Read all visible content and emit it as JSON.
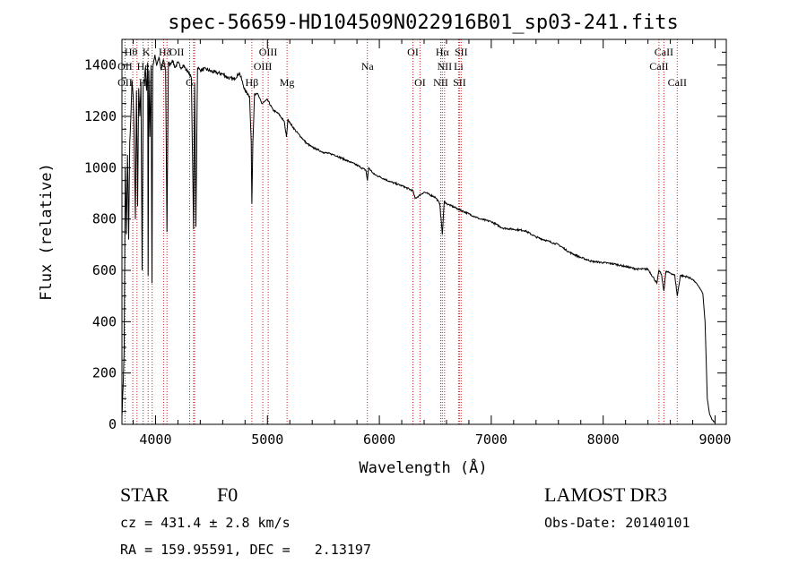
{
  "chart_data": {
    "type": "line",
    "title": "spec-56659-HD104509N022916B01_sp03-241.fits",
    "xlabel": "Wavelength (Å)",
    "ylabel": "Flux (relative)",
    "xlim": [
      3700,
      9100
    ],
    "ylim": [
      0,
      1500
    ],
    "x_ticks": [
      4000,
      5000,
      6000,
      7000,
      8000,
      9000
    ],
    "y_ticks": [
      0,
      200,
      400,
      600,
      800,
      1000,
      1200,
      1400
    ],
    "grid": false,
    "series": [
      {
        "name": "Flux",
        "x": [
          3700,
          3710,
          3720,
          3730,
          3740,
          3750,
          3760,
          3770,
          3780,
          3790,
          3800,
          3810,
          3820,
          3830,
          3840,
          3850,
          3860,
          3870,
          3880,
          3890,
          3900,
          3910,
          3920,
          3930,
          3934,
          3940,
          3950,
          3960,
          3968,
          3975,
          3985,
          3995,
          4010,
          4030,
          4050,
          4070,
          4090,
          4102,
          4115,
          4130,
          4150,
          4175,
          4200,
          4225,
          4250,
          4275,
          4300,
          4320,
          4340,
          4350,
          4361,
          4375,
          4400,
          4450,
          4500,
          4550,
          4600,
          4650,
          4700,
          4750,
          4800,
          4840,
          4855,
          4861,
          4870,
          4885,
          4910,
          4950,
          5000,
          5050,
          5100,
          5150,
          5170,
          5183,
          5200,
          5250,
          5300,
          5350,
          5400,
          5450,
          5500,
          5600,
          5700,
          5800,
          5880,
          5893,
          5905,
          5950,
          6000,
          6100,
          6200,
          6300,
          6320,
          6400,
          6500,
          6540,
          6563,
          6580,
          6600,
          6700,
          6800,
          6900,
          7000,
          7100,
          7200,
          7300,
          7400,
          7500,
          7600,
          7700,
          7800,
          7900,
          8000,
          8100,
          8200,
          8300,
          8400,
          8480,
          8498,
          8520,
          8542,
          8560,
          8600,
          8640,
          8662,
          8690,
          8750,
          8800,
          8850,
          8890,
          8910,
          8930,
          8950,
          8970,
          9000
        ],
        "y": [
          30,
          140,
          300,
          1000,
          740,
          1050,
          720,
          1100,
          1200,
          1340,
          1280,
          1100,
          800,
          1300,
          850,
          1310,
          1200,
          1330,
          600,
          1330,
          1340,
          1390,
          1300,
          1410,
          580,
          1380,
          1120,
          1400,
          550,
          1380,
          1420,
          1440,
          1400,
          1430,
          1380,
          1420,
          1380,
          750,
          1410,
          1400,
          1420,
          1390,
          1410,
          1390,
          1400,
          1380,
          1370,
          1350,
          760,
          1330,
          770,
          1390,
          1380,
          1385,
          1375,
          1370,
          1365,
          1350,
          1345,
          1370,
          1300,
          1280,
          1100,
          860,
          1100,
          1290,
          1290,
          1250,
          1265,
          1225,
          1210,
          1180,
          1120,
          1190,
          1175,
          1145,
          1120,
          1095,
          1080,
          1070,
          1060,
          1050,
          1030,
          1010,
          990,
          950,
          1000,
          975,
          965,
          945,
          930,
          910,
          880,
          905,
          885,
          860,
          740,
          870,
          860,
          840,
          820,
          800,
          790,
          765,
          760,
          755,
          730,
          715,
          700,
          670,
          650,
          635,
          630,
          625,
          615,
          605,
          605,
          550,
          600,
          585,
          520,
          595,
          590,
          580,
          500,
          580,
          575,
          565,
          540,
          510,
          400,
          100,
          40,
          20,
          5
        ]
      }
    ],
    "line_markers": [
      {
        "name": "OII",
        "wavelength": 3727,
        "row": 3,
        "offset": 0
      },
      {
        "name": "Hθ",
        "wavelength": 3797,
        "row": 1,
        "offset": -2
      },
      {
        "name": "OII",
        "wavelength": 3727,
        "row": 2,
        "offset": 0
      },
      {
        "name": "He",
        "wavelength": 3889,
        "row": 2,
        "offset": 0
      },
      {
        "name": "Hε",
        "wavelength": 3970,
        "row": 3,
        "offset": -8
      },
      {
        "name": "K",
        "wavelength": 3934,
        "row": 1,
        "offset": -2
      },
      {
        "name": "Hδ",
        "wavelength": 4102,
        "row": 1,
        "offset": -2
      },
      {
        "name": "S",
        "wavelength": 4072,
        "row": 2,
        "offset": 0
      },
      {
        "name": "OII",
        "wavelength": 4350,
        "row": 1,
        "offset": -20
      },
      {
        "name": "G",
        "wavelength": 4305,
        "row": 3,
        "offset": 0
      },
      {
        "name": "OIII",
        "wavelength": 5007,
        "row": 1,
        "offset": 0
      },
      {
        "name": "OIII",
        "wavelength": 4959,
        "row": 2,
        "offset": 0
      },
      {
        "name": "Hβ",
        "wavelength": 4861,
        "row": 3,
        "offset": 0
      },
      {
        "name": "Mg",
        "wavelength": 5175,
        "row": 3,
        "offset": 0
      },
      {
        "name": "Na",
        "wavelength": 5893,
        "row": 2,
        "offset": 0
      },
      {
        "name": "OI",
        "wavelength": 6300,
        "row": 1,
        "offset": 0
      },
      {
        "name": "OI",
        "wavelength": 6363,
        "row": 3,
        "offset": 0
      },
      {
        "name": "Hα",
        "wavelength": 6563,
        "row": 1,
        "offset": 0
      },
      {
        "name": "SII",
        "wavelength": 6731,
        "row": 1,
        "offset": 0
      },
      {
        "name": "NII",
        "wavelength": 6583,
        "row": 2,
        "offset": 0
      },
      {
        "name": "Li",
        "wavelength": 6708,
        "row": 2,
        "offset": 0
      },
      {
        "name": "NII",
        "wavelength": 6548,
        "row": 3,
        "offset": 0
      },
      {
        "name": "SII",
        "wavelength": 6716,
        "row": 3,
        "offset": 0
      },
      {
        "name": "CaII",
        "wavelength": 8542,
        "row": 1,
        "offset": 0
      },
      {
        "name": "CaII",
        "wavelength": 8498,
        "row": 2,
        "offset": 0
      },
      {
        "name": "CaII",
        "wavelength": 8662,
        "row": 3,
        "offset": 0
      }
    ]
  },
  "marker_line_wavelengths": [
    3727,
    3797,
    3835,
    3889,
    3934,
    3970,
    4072,
    4102,
    4305,
    4340,
    4350,
    4861,
    4959,
    5007,
    5175,
    5893,
    6300,
    6363,
    6548,
    6563,
    6583,
    6708,
    6716,
    6731,
    8498,
    8542,
    8662
  ],
  "colors": {
    "axis": "#000000",
    "spectrum": "#000000",
    "marker_line": "#cc2222"
  },
  "info": {
    "object_class": "STAR",
    "subclass": "F0",
    "survey": "LAMOST DR3",
    "cz": "cz = 431.4 ± 2.8 km/s",
    "obs_date": "Obs-Date: 20140101",
    "coords": "RA = 159.95591, DEC =   2.13197"
  }
}
